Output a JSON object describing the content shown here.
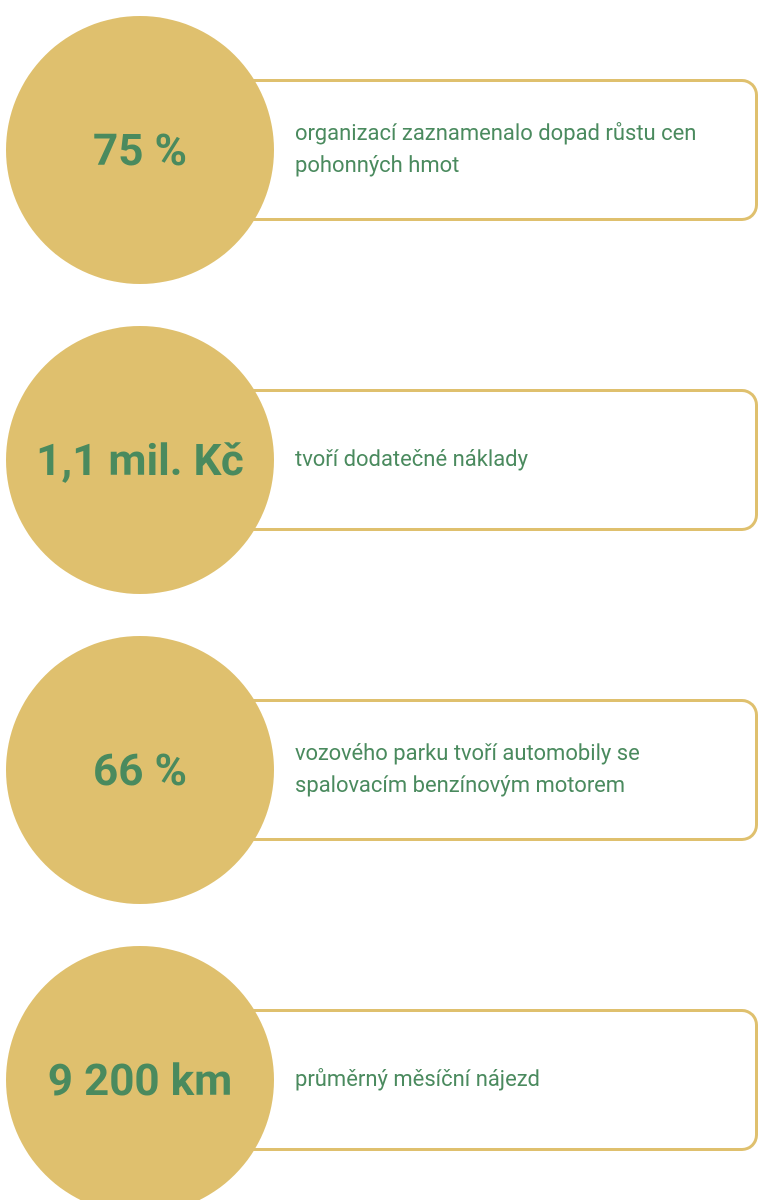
{
  "items": [
    {
      "value": "75 %",
      "text": "organizací zaznamenalo dopad růstu cen pohonných hmot"
    },
    {
      "value": "1,1 mil. Kč",
      "text": "tvoří dodatečné náklady"
    },
    {
      "value": "66 %",
      "text": "vozového parku tvoří automobily se spalovacím benzínovým motorem"
    },
    {
      "value": "9 200 km",
      "text": "průměrný měsíční nájezd"
    }
  ]
}
